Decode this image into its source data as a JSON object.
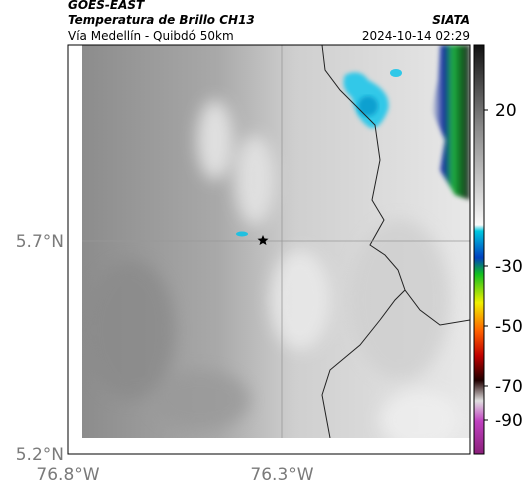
{
  "header": {
    "source": "GOES-EAST",
    "title": "Temperatura de Brillo CH13",
    "subtitle": "Vía Medellín - Quibdó 50km",
    "credit": "SIATA",
    "timestamp": "2024-10-14 02:29"
  },
  "axes": {
    "lat_ticks": [
      "5.7°N",
      "5.2°N"
    ],
    "lon_ticks": [
      "76.8°W",
      "76.3°W"
    ]
  },
  "colorbar": {
    "ticks": [
      "20",
      "-30",
      "-50",
      "-70",
      "-90"
    ]
  }
}
